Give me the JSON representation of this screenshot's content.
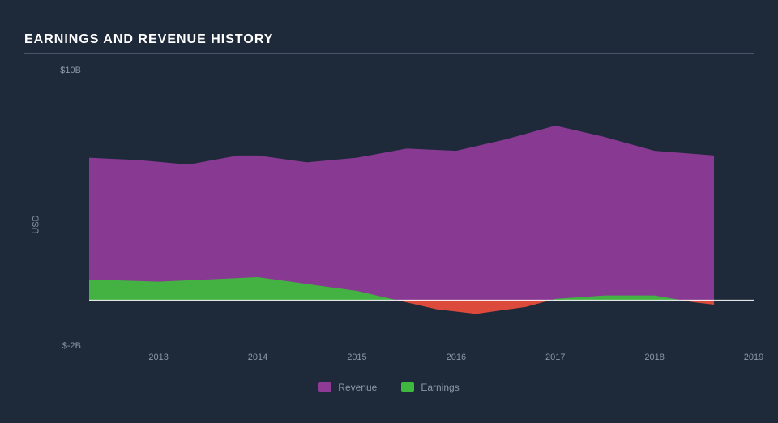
{
  "chart": {
    "type": "area",
    "title": "EARNINGS AND REVENUE HISTORY",
    "background_color": "#1e2a3a",
    "grid_color": "#4a5568",
    "text_color": "#8b96a5",
    "title_color": "#ffffff",
    "title_fontsize": 16,
    "label_fontsize": 11,
    "ylabel": "USD",
    "ylim": [
      -2,
      10
    ],
    "yticks": [
      {
        "value": 10,
        "label": "$10B"
      },
      {
        "value": -2,
        "label": "$-2B"
      }
    ],
    "xlim": [
      2012.3,
      2019
    ],
    "xticks": [
      2013,
      2014,
      2015,
      2016,
      2017,
      2018,
      2019
    ],
    "zero_line_color": "#ffffff",
    "zero_line_width": 1,
    "series": [
      {
        "name": "Revenue",
        "color": "#8e3b97",
        "fill_opacity": 0.95,
        "data": [
          {
            "x": 2012.3,
            "y": 6.2
          },
          {
            "x": 2012.8,
            "y": 6.1
          },
          {
            "x": 2013.3,
            "y": 5.9
          },
          {
            "x": 2013.8,
            "y": 6.3
          },
          {
            "x": 2014.0,
            "y": 6.3
          },
          {
            "x": 2014.5,
            "y": 6.0
          },
          {
            "x": 2015.0,
            "y": 6.2
          },
          {
            "x": 2015.5,
            "y": 6.6
          },
          {
            "x": 2016.0,
            "y": 6.5
          },
          {
            "x": 2016.5,
            "y": 7.0
          },
          {
            "x": 2017.0,
            "y": 7.6
          },
          {
            "x": 2017.5,
            "y": 7.1
          },
          {
            "x": 2018.0,
            "y": 6.5
          },
          {
            "x": 2018.6,
            "y": 6.3
          },
          {
            "x": 2018.6,
            "y": 0.0
          }
        ]
      },
      {
        "name": "Earnings",
        "color_positive": "#3fb83f",
        "color_negative": "#e74c3c",
        "fill_opacity": 0.95,
        "data": [
          {
            "x": 2012.3,
            "y": 0.9
          },
          {
            "x": 2013.0,
            "y": 0.8
          },
          {
            "x": 2013.5,
            "y": 0.9
          },
          {
            "x": 2014.0,
            "y": 1.0
          },
          {
            "x": 2014.5,
            "y": 0.7
          },
          {
            "x": 2015.0,
            "y": 0.4
          },
          {
            "x": 2015.4,
            "y": 0.0
          },
          {
            "x": 2015.8,
            "y": -0.4
          },
          {
            "x": 2016.2,
            "y": -0.6
          },
          {
            "x": 2016.7,
            "y": -0.3
          },
          {
            "x": 2017.0,
            "y": 0.05
          },
          {
            "x": 2017.5,
            "y": 0.2
          },
          {
            "x": 2018.0,
            "y": 0.2
          },
          {
            "x": 2018.4,
            "y": -0.1
          },
          {
            "x": 2018.6,
            "y": -0.2
          },
          {
            "x": 2018.6,
            "y": 0.0
          }
        ]
      }
    ],
    "legend": [
      {
        "label": "Revenue",
        "color": "#8e3b97"
      },
      {
        "label": "Earnings",
        "color": "#3fb83f"
      }
    ]
  }
}
